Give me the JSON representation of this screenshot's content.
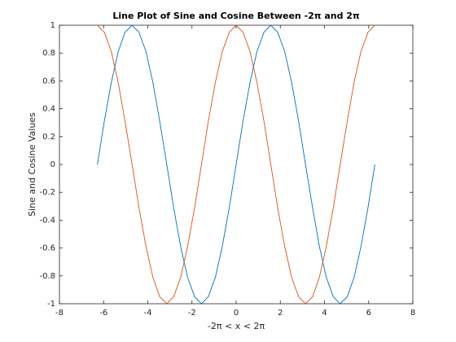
{
  "chart_data": {
    "type": "line",
    "title": "Line Plot of Sine and Cosine Between -2π and 2π",
    "xlabel": "-2π < x < 2π",
    "ylabel": "Sine and Cosine Values",
    "x": [
      -6.28,
      -5.97,
      -5.65,
      -5.34,
      -5.03,
      -4.71,
      -4.4,
      -4.08,
      -3.77,
      -3.46,
      -3.14,
      -2.83,
      -2.51,
      -2.2,
      -1.88,
      -1.57,
      -1.26,
      -0.94,
      -0.63,
      -0.31,
      0,
      0.31,
      0.63,
      0.94,
      1.26,
      1.57,
      1.88,
      2.2,
      2.51,
      2.83,
      3.14,
      3.46,
      3.77,
      4.08,
      4.4,
      4.71,
      5.03,
      5.34,
      5.65,
      5.97,
      6.28
    ],
    "series": [
      {
        "color": "#0072bd",
        "values": [
          0,
          0.31,
          0.59,
          0.81,
          0.95,
          1,
          0.95,
          0.81,
          0.59,
          0.31,
          0,
          -0.31,
          -0.59,
          -0.81,
          -0.95,
          -1,
          -0.95,
          -0.81,
          -0.59,
          -0.31,
          0,
          0.31,
          0.59,
          0.81,
          0.95,
          1,
          0.95,
          0.81,
          0.59,
          0.31,
          0,
          -0.31,
          -0.59,
          -0.81,
          -0.95,
          -1,
          -0.95,
          -0.81,
          -0.59,
          -0.31,
          0
        ]
      },
      {
        "color": "#d95319",
        "values": [
          1,
          0.95,
          0.81,
          0.59,
          0.31,
          0,
          -0.31,
          -0.59,
          -0.81,
          -0.95,
          -1,
          -0.95,
          -0.81,
          -0.59,
          -0.31,
          0,
          0.31,
          0.59,
          0.81,
          0.95,
          1,
          0.95,
          0.81,
          0.59,
          0.31,
          0,
          -0.31,
          -0.59,
          -0.81,
          -0.95,
          -1,
          -0.95,
          -0.81,
          -0.59,
          -0.31,
          0,
          0.31,
          0.59,
          0.81,
          0.95,
          1
        ]
      }
    ],
    "xlim": [
      -8,
      8
    ],
    "xticks": [
      -8,
      -6,
      -4,
      -2,
      0,
      2,
      4,
      6,
      8
    ],
    "ylim": [
      -1,
      1
    ],
    "yticks": [
      -1,
      -0.8,
      -0.6,
      -0.4,
      -0.2,
      0,
      0.2,
      0.4,
      0.6,
      0.8,
      1
    ],
    "grid": false
  }
}
